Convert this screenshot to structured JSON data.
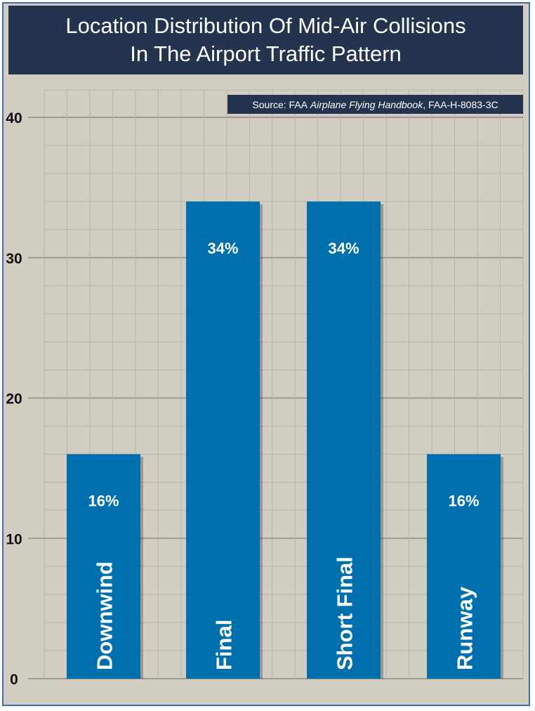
{
  "title_lines": [
    "Location Distribution Of Mid-Air Collisions",
    "In The Airport Traffic Pattern"
  ],
  "source": {
    "prefix": "Source: FAA ",
    "title_italic": "Airplane Flying Handbook",
    "suffix": ", FAA-H-8083-3C"
  },
  "colors": {
    "bar": "#006fae",
    "background": "#d2cdc3",
    "title_bar": "#24344f",
    "grid": "#b9b4aa",
    "border": "#3f6ea8"
  },
  "chart_data": {
    "type": "bar",
    "title": "Location Distribution Of Mid-Air Collisions In The Airport Traffic Pattern",
    "categories": [
      "Downwind",
      "Final",
      "Short Final",
      "Runway"
    ],
    "values": [
      16,
      34,
      34,
      16
    ],
    "data_labels": [
      "16%",
      "34%",
      "34%",
      "16%"
    ],
    "y_ticks": [
      0,
      10,
      20,
      30,
      40
    ],
    "ylim": [
      0,
      40
    ],
    "grid": true,
    "xlabel": "",
    "ylabel": ""
  }
}
